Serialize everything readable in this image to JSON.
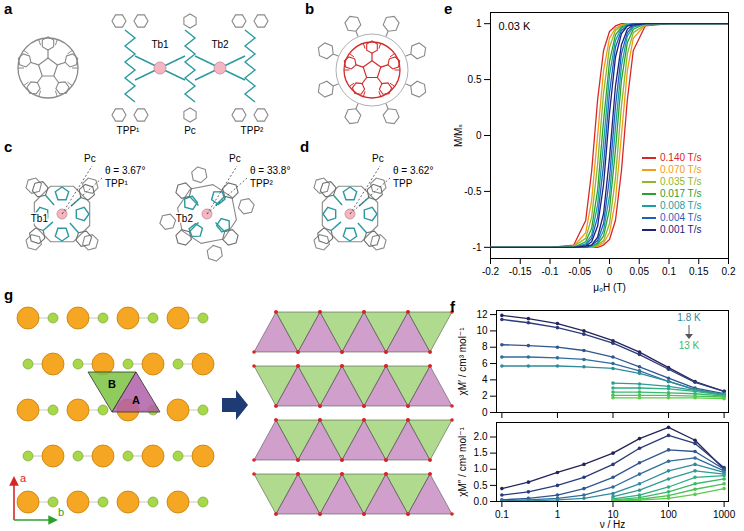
{
  "structures": {
    "a": {
      "label": "a",
      "tpp1": "TPP¹",
      "tb1": "Tb1",
      "tb2": "Tb2",
      "pc": "Pc",
      "tpp2": "TPP²"
    },
    "b": {
      "label": "b"
    },
    "c": {
      "label": "c",
      "left": {
        "tb": "Tb1",
        "pc": "Pc",
        "tpp": "TPP¹",
        "theta": "θ = 3.67°"
      },
      "right": {
        "tb": "Tb2",
        "pc": "Pc",
        "tpp": "TPP²",
        "theta": "θ = 33.8°"
      }
    },
    "d": {
      "label": "d",
      "pc": "Pc",
      "tpp": "TPP",
      "theta": "θ = 3.62°"
    },
    "g": {
      "label": "g",
      "sites": [
        "A",
        "B"
      ],
      "axes": [
        "a",
        "b"
      ]
    }
  },
  "chart_data": [
    {
      "type": "line",
      "title": "e",
      "annotations": [
        "0.03 K"
      ],
      "xlabel": "μ₀H (T)",
      "ylabel": "M/Mₛ",
      "x": [
        -0.2,
        -0.1,
        -0.06,
        -0.04,
        -0.03,
        -0.02,
        -0.01,
        0,
        0.01,
        0.02,
        0.03,
        0.04,
        0.06,
        0.1,
        0.2,
        0.2,
        0.1,
        0.06,
        0.04,
        0.03,
        0.02,
        0.01,
        0,
        -0.01,
        -0.02,
        -0.03,
        -0.04,
        -0.06,
        -0.1,
        -0.2
      ],
      "xlim": [
        -0.2,
        0.2
      ],
      "xticks": [
        -0.2,
        -0.15,
        -0.1,
        -0.05,
        0,
        0.05,
        0.1,
        0.15,
        0.2
      ],
      "ylim": [
        -1.1,
        1.1
      ],
      "yticks": [
        -1,
        -0.5,
        0,
        0.5,
        1
      ],
      "legend": "bottom right",
      "series": [
        {
          "name": "0.140 T/s",
          "color": "#d62728",
          "values": [
            -1,
            -1,
            -1,
            -1,
            -1,
            -1,
            -0.98,
            -0.93,
            -0.76,
            -0.32,
            0.32,
            0.76,
            0.98,
            1,
            1,
            1,
            1,
            1,
            1,
            1,
            1,
            0.98,
            0.93,
            0.76,
            0.32,
            -0.32,
            -0.76,
            -0.98,
            -1,
            -1
          ]
        },
        {
          "name": "0.070 T/s",
          "color": "#f39c12",
          "values": [
            -1,
            -1,
            -1,
            -1,
            -1,
            -0.99,
            -0.96,
            -0.87,
            -0.58,
            0,
            0.58,
            0.87,
            0.99,
            1,
            1,
            1,
            1,
            1,
            1,
            1,
            0.99,
            0.96,
            0.87,
            0.58,
            0,
            -0.58,
            -0.87,
            -0.99,
            -1,
            -1
          ]
        },
        {
          "name": "0.035 T/s",
          "color": "#8cb82b",
          "values": [
            -1,
            -1,
            -1,
            -1,
            -1,
            -0.98,
            -0.94,
            -0.79,
            -0.38,
            0.26,
            0.73,
            0.92,
            0.99,
            1,
            1,
            1,
            1,
            1,
            1,
            1,
            0.98,
            0.94,
            0.79,
            0.38,
            -0.26,
            -0.73,
            -0.92,
            -0.99,
            -1,
            -1
          ]
        },
        {
          "name": "0.017 T/s",
          "color": "#2ca02c",
          "values": [
            -1,
            -1,
            -1,
            -1,
            -0.99,
            -0.97,
            -0.9,
            -0.66,
            -0.13,
            0.49,
            0.83,
            0.95,
            1,
            1,
            1,
            1,
            1,
            1,
            1,
            0.99,
            0.97,
            0.9,
            0.66,
            0.13,
            -0.49,
            -0.83,
            -0.95,
            -1,
            -1,
            -1
          ]
        },
        {
          "name": "0.008 T/s",
          "color": "#17a2a2",
          "values": [
            -1,
            -1,
            -1,
            -1,
            -0.99,
            -0.96,
            -0.85,
            -0.54,
            0.07,
            0.62,
            0.89,
            0.97,
            1,
            1,
            1,
            1,
            1,
            1,
            1,
            0.99,
            0.96,
            0.85,
            0.54,
            -0.07,
            -0.62,
            -0.89,
            -0.97,
            -1,
            -1,
            -1
          ]
        },
        {
          "name": "0.004 T/s",
          "color": "#1f5fbf",
          "values": [
            -1,
            -1,
            -1,
            -1,
            -0.98,
            -0.94,
            -0.79,
            -0.38,
            0.26,
            0.73,
            0.92,
            0.98,
            1,
            1,
            1,
            1,
            1,
            1,
            1,
            0.98,
            0.94,
            0.79,
            0.38,
            -0.26,
            -0.73,
            -0.92,
            -0.98,
            -1,
            -1,
            -1
          ]
        },
        {
          "name": "0.001 T/s",
          "color": "#1a237e",
          "values": [
            -1,
            -1,
            -1,
            -0.99,
            -0.98,
            -0.91,
            -0.7,
            -0.2,
            0.44,
            0.81,
            0.95,
            0.99,
            1,
            1,
            1,
            1,
            1,
            1,
            0.99,
            0.98,
            0.91,
            0.7,
            0.2,
            -0.44,
            -0.81,
            -0.95,
            -0.99,
            -1,
            -1,
            -1
          ]
        }
      ]
    },
    {
      "type": "line",
      "title": "f",
      "marker": "circle",
      "log": "x",
      "tick_labels": "y",
      "annotations": [
        "1.8 K",
        "13 K"
      ],
      "ylabel": "χM′ / cm³ mol⁻¹",
      "x": [
        0.1,
        0.3,
        1,
        3,
        10,
        30,
        100,
        300,
        1000
      ],
      "xlim": [
        0.08,
        1200
      ],
      "xticks": [
        0.1,
        1,
        10,
        100,
        1000
      ],
      "ylim": [
        0,
        12.5
      ],
      "yticks": [
        0,
        2,
        4,
        6,
        8,
        10,
        12
      ],
      "series": [
        {
          "color": "#23235b",
          "values": [
            11.9,
            11.5,
            10.9,
            10.0,
            8.8,
            7.4,
            5.5,
            3.8,
            2.6
          ]
        },
        {
          "color": "#2b3a78",
          "values": [
            11.4,
            11.0,
            10.4,
            9.6,
            8.5,
            7.1,
            5.3,
            3.7,
            2.6
          ]
        },
        {
          "color": "#2f5690",
          "values": [
            8.3,
            8.2,
            8.0,
            7.6,
            6.8,
            5.6,
            4.2,
            3.0,
            2.3
          ]
        },
        {
          "color": "#2f6e9a",
          "values": [
            6.8,
            6.8,
            6.7,
            6.5,
            6.0,
            5.1,
            3.8,
            2.8,
            2.2
          ]
        },
        {
          "color": "#2f8a9c",
          "values": [
            5.7,
            5.7,
            5.7,
            5.6,
            5.4,
            4.8,
            3.8,
            2.8,
            2.2
          ]
        },
        {
          "color": "#2e9c92",
          "values": [
            null,
            null,
            null,
            null,
            3.6,
            3.5,
            3.2,
            2.7,
            2.2
          ]
        },
        {
          "color": "#32ac82",
          "values": [
            null,
            null,
            null,
            null,
            3.0,
            3.0,
            2.9,
            2.6,
            2.1
          ]
        },
        {
          "color": "#3cb86c",
          "values": [
            null,
            null,
            null,
            null,
            2.5,
            2.5,
            2.4,
            2.3,
            2.0
          ]
        },
        {
          "color": "#4cc25a",
          "values": [
            null,
            null,
            null,
            null,
            2.1,
            2.1,
            2.1,
            2.0,
            1.9
          ]
        },
        {
          "color": "#5ccb48",
          "values": [
            null,
            null,
            null,
            null,
            1.8,
            1.8,
            1.8,
            1.8,
            1.7
          ]
        }
      ]
    },
    {
      "type": "line",
      "marker": "circle",
      "log": "x",
      "xlabel": "ν / Hz",
      "ylabel": "χM″ / cm³ mol⁻¹",
      "x": [
        0.1,
        0.3,
        1,
        3,
        10,
        30,
        100,
        300,
        1000
      ],
      "xlim": [
        0.08,
        1200
      ],
      "xticks": [
        0.1,
        1,
        10,
        100,
        1000
      ],
      "ylim": [
        0,
        2.45
      ],
      "yticks": [
        {
          "value": 0,
          "label": "0.0"
        },
        {
          "value": 0.5,
          "label": "0.5"
        },
        {
          "value": 1,
          "label": "1.0"
        },
        {
          "value": 1.5,
          "label": "1.5"
        },
        {
          "value": 2,
          "label": "2.0"
        }
      ],
      "series": [
        {
          "color": "#23235b",
          "values": [
            0.4,
            0.6,
            0.9,
            1.15,
            1.5,
            1.95,
            2.3,
            1.9,
            1.0
          ]
        },
        {
          "color": "#2b3a78",
          "values": [
            0.2,
            0.3,
            0.5,
            0.75,
            1.15,
            1.65,
            2.05,
            1.8,
            1.05
          ]
        },
        {
          "color": "#2f5690",
          "values": [
            0.05,
            0.1,
            0.2,
            0.4,
            0.75,
            1.2,
            1.6,
            1.55,
            1.0
          ]
        },
        {
          "color": "#2f6e9a",
          "values": [
            0.02,
            0.05,
            0.1,
            0.2,
            0.45,
            0.85,
            1.25,
            1.35,
            0.95
          ]
        },
        {
          "color": "#2f8a9c",
          "values": [
            0.01,
            0.02,
            0.05,
            0.1,
            0.25,
            0.55,
            0.95,
            1.15,
            0.9
          ]
        },
        {
          "color": "#2e9c92",
          "values": [
            null,
            null,
            null,
            null,
            0.15,
            0.35,
            0.7,
            0.95,
            0.85
          ]
        },
        {
          "color": "#32ac82",
          "values": [
            null,
            null,
            null,
            null,
            0.08,
            0.2,
            0.45,
            0.75,
            0.8
          ]
        },
        {
          "color": "#3cb86c",
          "values": [
            null,
            null,
            null,
            null,
            0.05,
            0.12,
            0.3,
            0.55,
            0.7
          ]
        },
        {
          "color": "#4cc25a",
          "values": [
            null,
            null,
            null,
            null,
            0.03,
            0.07,
            0.18,
            0.38,
            0.55
          ]
        },
        {
          "color": "#5ccb48",
          "values": [
            null,
            null,
            null,
            null,
            0.02,
            0.04,
            0.1,
            0.22,
            0.4
          ]
        }
      ]
    }
  ]
}
